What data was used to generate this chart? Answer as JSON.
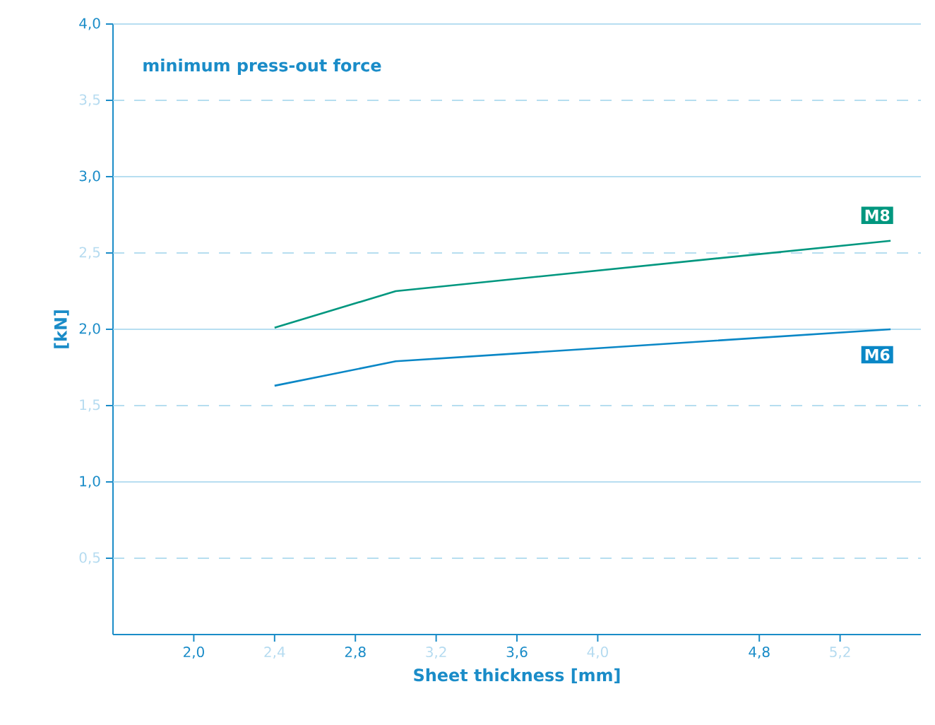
{
  "chart_data": {
    "type": "line",
    "title": "minimum press-out force",
    "xlabel": "Sheet thickness [mm]",
    "ylabel": "[kN]",
    "x": [
      2.4,
      3.0,
      5.45
    ],
    "series": [
      {
        "name": "M8",
        "color": "#00977f",
        "values": [
          2.01,
          2.25,
          2.58
        ]
      },
      {
        "name": "M6",
        "color": "#0a87c6",
        "values": [
          1.63,
          1.79,
          2.0
        ]
      }
    ],
    "xlim": [
      1.6,
      5.6
    ],
    "xticks": [
      {
        "value": 2.0,
        "label": "2,0"
      },
      {
        "value": 2.4,
        "label": "2,4"
      },
      {
        "value": 2.8,
        "label": "2,8"
      },
      {
        "value": 3.2,
        "label": "3,2"
      },
      {
        "value": 3.6,
        "label": "3,6"
      },
      {
        "value": 4.0,
        "label": "4,0"
      },
      {
        "value": 4.8,
        "label": "4,8"
      },
      {
        "value": 5.2,
        "label": "5,2"
      }
    ],
    "ylim": [
      0,
      4.0
    ],
    "yticks": [
      {
        "value": 0.5,
        "label": "0,5"
      },
      {
        "value": 1.0,
        "label": "1,0"
      },
      {
        "value": 1.5,
        "label": "1,5"
      },
      {
        "value": 2.0,
        "label": "2,0"
      },
      {
        "value": 2.5,
        "label": "2,5"
      },
      {
        "value": 3.0,
        "label": "3,0"
      },
      {
        "value": 3.5,
        "label": "3,5"
      },
      {
        "value": 4.0,
        "label": "4,0"
      }
    ],
    "grid": "y",
    "marker": "none",
    "line_style": "solid"
  }
}
